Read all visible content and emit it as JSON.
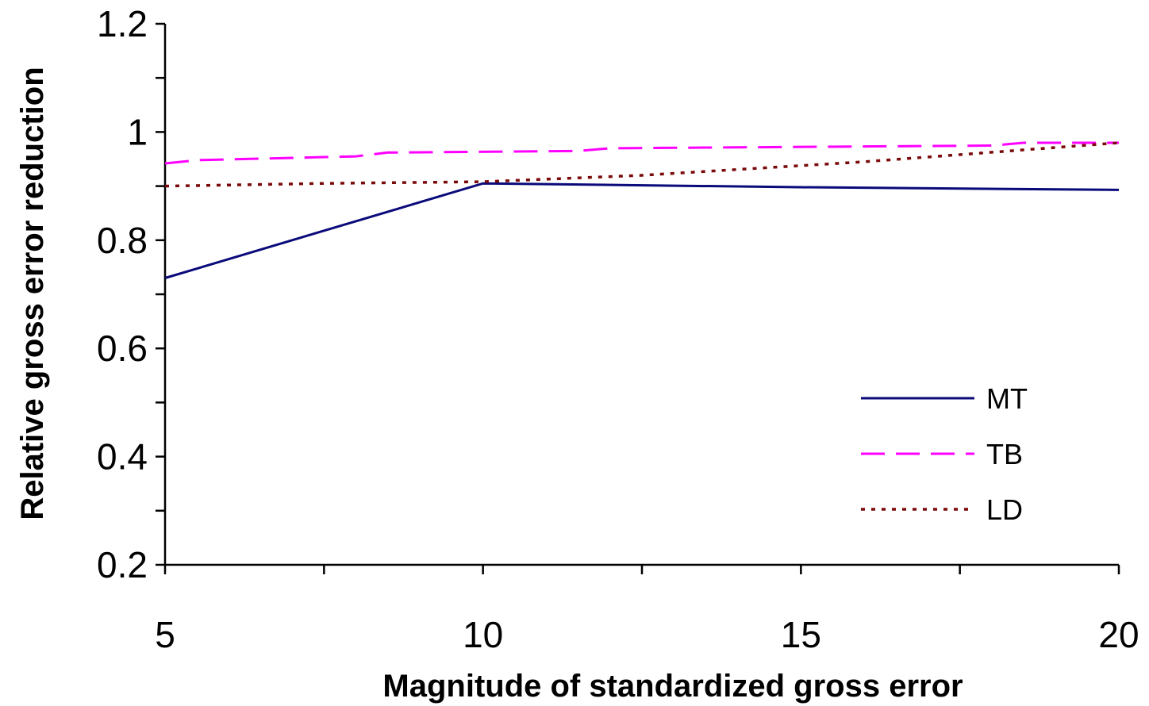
{
  "chart_data": {
    "type": "line",
    "title": "",
    "xlabel": "Magnitude of standardized gross error",
    "ylabel": "Relative gross error reduction",
    "xlim": [
      5,
      20
    ],
    "ylim": [
      0.2,
      1.2
    ],
    "xticks": [
      5,
      10,
      15,
      20
    ],
    "yticks": [
      0.2,
      0.4,
      0.6,
      0.8,
      1,
      1.2
    ],
    "xtick_labels": [
      "5",
      "10",
      "15",
      "20"
    ],
    "ytick_labels": [
      "0.2",
      "0.4",
      "0.6",
      "0.8",
      "1",
      "1.2"
    ],
    "grid": false,
    "legend_position": "bottom-right",
    "series": [
      {
        "name": "MT",
        "color": "#0a0a7a",
        "style": "solid",
        "x": [
          5,
          10,
          15,
          20
        ],
        "y": [
          0.73,
          0.905,
          0.898,
          0.893
        ]
      },
      {
        "name": "TB",
        "color": "#ff00ff",
        "style": "dashed",
        "x": [
          5,
          5.5,
          8,
          8.5,
          11.5,
          12,
          18,
          18.5,
          20
        ],
        "y": [
          0.942,
          0.948,
          0.955,
          0.962,
          0.965,
          0.97,
          0.975,
          0.98,
          0.98
        ]
      },
      {
        "name": "LD",
        "color": "#7a0a0a",
        "style": "dotted",
        "x": [
          5,
          7.5,
          10,
          12.5,
          16,
          20
        ],
        "y": [
          0.9,
          0.905,
          0.908,
          0.92,
          0.945,
          0.98
        ]
      }
    ]
  }
}
